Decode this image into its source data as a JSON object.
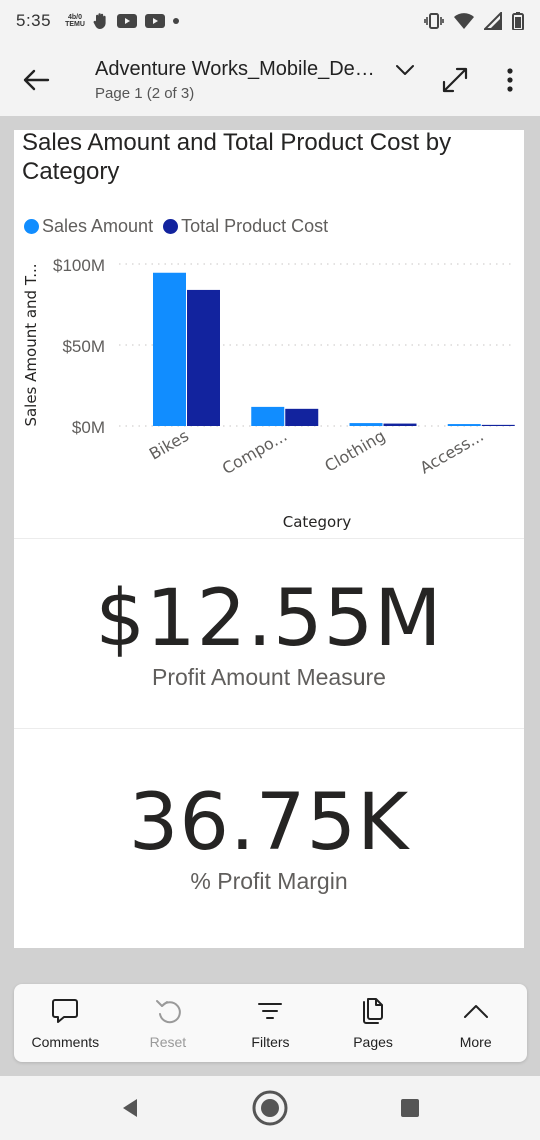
{
  "status_bar": {
    "time": "5:35",
    "temu_top": "4b/0",
    "temu_bottom": "TEMU"
  },
  "header": {
    "title": "Adventure Works_Mobile_Design",
    "page_info": "Page 1 (2 of 3)"
  },
  "chart_data": {
    "type": "bar",
    "title": "Sales Amount and Total Product Cost by Category",
    "xlabel": "Category",
    "ylabel": "Sales Amount and T...",
    "categories": [
      "Bikes",
      "Compo...",
      "Clothing",
      "Access..."
    ],
    "series": [
      {
        "name": "Sales Amount",
        "color": "#118dff",
        "values": [
          94.6,
          11.8,
          1.8,
          1.2
        ]
      },
      {
        "name": "Total Product Cost",
        "color": "#12239e",
        "values": [
          84.0,
          10.6,
          1.5,
          0.7
        ]
      }
    ],
    "ylim": [
      0,
      100
    ],
    "yticks": [
      0,
      50,
      100
    ],
    "ytick_labels": [
      "$0M",
      "$50M",
      "$100M"
    ],
    "grid": true,
    "legend_position": "top-left"
  },
  "kpis": {
    "profit_amount": {
      "value": "$12.55M",
      "label": "Profit Amount Measure"
    },
    "profit_margin": {
      "value": "36.75K",
      "label": "% Profit Margin"
    }
  },
  "toolbar": {
    "comments": "Comments",
    "reset": "Reset",
    "filters": "Filters",
    "pages": "Pages",
    "more": "More"
  },
  "icons": {
    "back": "arrow-left-icon",
    "expand": "expand-icon",
    "overflow": "more-vertical-icon"
  }
}
